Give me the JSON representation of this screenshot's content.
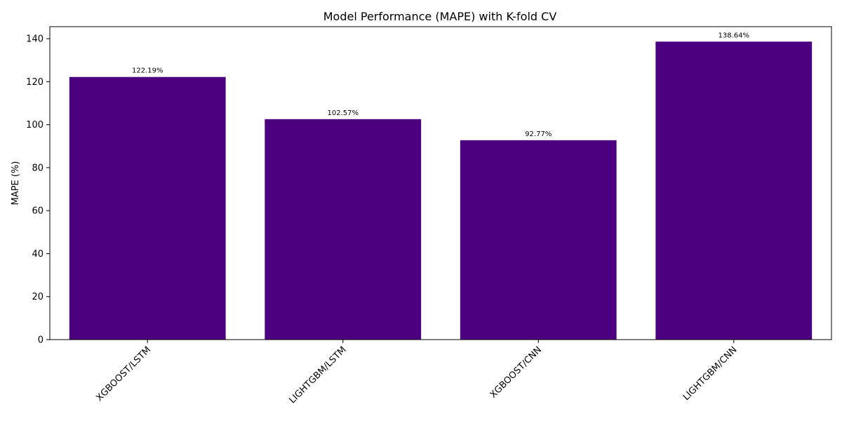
{
  "chart_data": {
    "type": "bar",
    "title": "Model Performance (MAPE) with K-fold CV",
    "xlabel": "",
    "ylabel": "MAPE (%)",
    "categories": [
      "XGBOOST/LSTM",
      "LIGHTGBM/LSTM",
      "XGBOOST/CNN",
      "LIGHTGBM/CNN"
    ],
    "values": [
      122.19,
      102.57,
      92.77,
      138.64
    ],
    "data_labels": [
      "122.19%",
      "102.57%",
      "92.77%",
      "138.64%"
    ],
    "ylim": [
      0,
      145.6
    ],
    "yticks": [
      0,
      20,
      40,
      60,
      80,
      100,
      120,
      140
    ],
    "bar_color": "#4b0080",
    "grid": false,
    "legend": "none"
  }
}
